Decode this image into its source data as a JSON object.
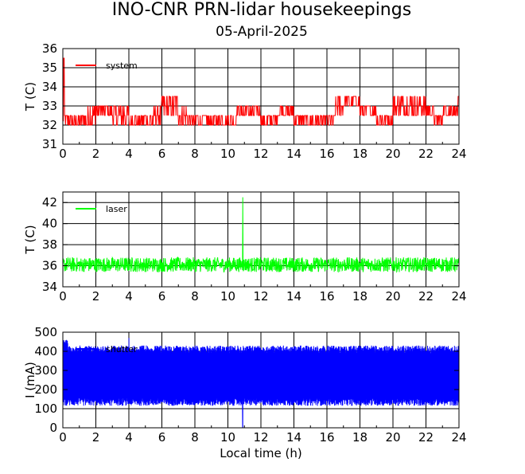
{
  "title": "INO-CNR PRN-lidar housekeepings",
  "subtitle": "05-April-2025",
  "xlabel": "Local time (h)",
  "chart_data": [
    {
      "type": "line",
      "panel": "system",
      "ylabel": "T (C)",
      "xlim": [
        0,
        24
      ],
      "ylim": [
        31,
        36
      ],
      "xticks": [
        "0",
        "2",
        "4",
        "6",
        "8",
        "10",
        "12",
        "14",
        "16",
        "18",
        "20",
        "22",
        "24"
      ],
      "yticks": [
        "31",
        "32",
        "33",
        "34",
        "35",
        "36"
      ],
      "grid": true,
      "legend_position": "top-left",
      "series": [
        {
          "name": "system",
          "color": "#ff0000",
          "x": [
            0,
            0.05,
            0.1,
            1,
            1.5,
            2,
            3,
            4,
            5,
            5.5,
            6,
            7,
            7.5,
            8,
            9,
            10,
            10.5,
            11,
            12,
            13,
            14,
            15,
            16,
            16.5,
            17,
            18,
            19,
            19.5,
            20,
            21,
            22,
            22.5,
            23,
            23.9
          ],
          "y": [
            32.2,
            35.5,
            32.3,
            32.2,
            32.2,
            32.7,
            32.7,
            32.2,
            32.2,
            32.2,
            33.0,
            32.7,
            32.0,
            32.2,
            32.2,
            32.0,
            32.7,
            32.7,
            32.2,
            32.7,
            32.2,
            32.2,
            32.0,
            33.0,
            33.2,
            32.7,
            32.2,
            32.0,
            33.0,
            33.0,
            32.7,
            32.0,
            32.7,
            33.0
          ],
          "range": [
            [
              31.8,
              32.7
            ],
            [
              31.8,
              35.5
            ],
            [
              31.8,
              32.7
            ],
            [
              31.8,
              32.7
            ],
            [
              31.8,
              33.2
            ],
            [
              32.2,
              33.2
            ],
            [
              31.8,
              33.2
            ],
            [
              31.8,
              32.7
            ],
            [
              31.8,
              32.7
            ],
            [
              31.8,
              33.2
            ],
            [
              32.2,
              33.7
            ],
            [
              31.8,
              33.2
            ],
            [
              31.8,
              32.7
            ],
            [
              31.8,
              32.7
            ],
            [
              31.8,
              32.7
            ],
            [
              31.8,
              32.7
            ],
            [
              32.2,
              33.2
            ],
            [
              32.2,
              33.2
            ],
            [
              31.8,
              32.7
            ],
            [
              32.2,
              33.2
            ],
            [
              31.8,
              32.7
            ],
            [
              31.8,
              32.7
            ],
            [
              31.8,
              32.7
            ],
            [
              32.2,
              33.7
            ],
            [
              32.7,
              33.7
            ],
            [
              32.2,
              33.2
            ],
            [
              31.8,
              32.7
            ],
            [
              31.8,
              32.7
            ],
            [
              32.2,
              33.7
            ],
            [
              32.2,
              33.7
            ],
            [
              32.2,
              33.2
            ],
            [
              31.8,
              32.7
            ],
            [
              32.2,
              33.2
            ],
            [
              32.2,
              33.7
            ]
          ]
        }
      ]
    },
    {
      "type": "line",
      "panel": "laser",
      "ylabel": "T (C)",
      "xlim": [
        0,
        24
      ],
      "ylim": [
        34,
        43
      ],
      "xticks": [
        "0",
        "2",
        "4",
        "6",
        "8",
        "10",
        "12",
        "14",
        "16",
        "18",
        "20",
        "22",
        "24"
      ],
      "yticks": [
        "34",
        "36",
        "38",
        "40",
        "42"
      ],
      "grid": true,
      "legend_position": "top-left",
      "series": [
        {
          "name": "laser",
          "color": "#00ff00",
          "x": [
            0,
            10.85,
            10.9,
            10.95,
            24
          ],
          "y": [
            36.0,
            36.0,
            42.5,
            36.0,
            36.0
          ],
          "band": [
            35.4,
            36.8
          ],
          "spike_x": 10.9,
          "spike_y": 42.5
        }
      ]
    },
    {
      "type": "line",
      "panel": "current",
      "ylabel": "I (mA)",
      "xlim": [
        0,
        24
      ],
      "ylim": [
        0,
        500
      ],
      "xticks": [
        "0",
        "2",
        "4",
        "6",
        "8",
        "10",
        "12",
        "14",
        "16",
        "18",
        "20",
        "22",
        "24"
      ],
      "yticks": [
        "0",
        "100",
        "200",
        "300",
        "400",
        "500"
      ],
      "grid": true,
      "legend_position": "top-left",
      "series": [
        {
          "name": "shutter",
          "color": "#0000ff",
          "x": [
            0,
            4,
            10.9,
            24
          ],
          "y": [
            300,
            300,
            300,
            300
          ],
          "band": [
            115,
            430
          ],
          "spike_x": 10.9,
          "spike_y": 0,
          "spike2_x": 4.0,
          "spike2_y": 470
        }
      ]
    }
  ]
}
